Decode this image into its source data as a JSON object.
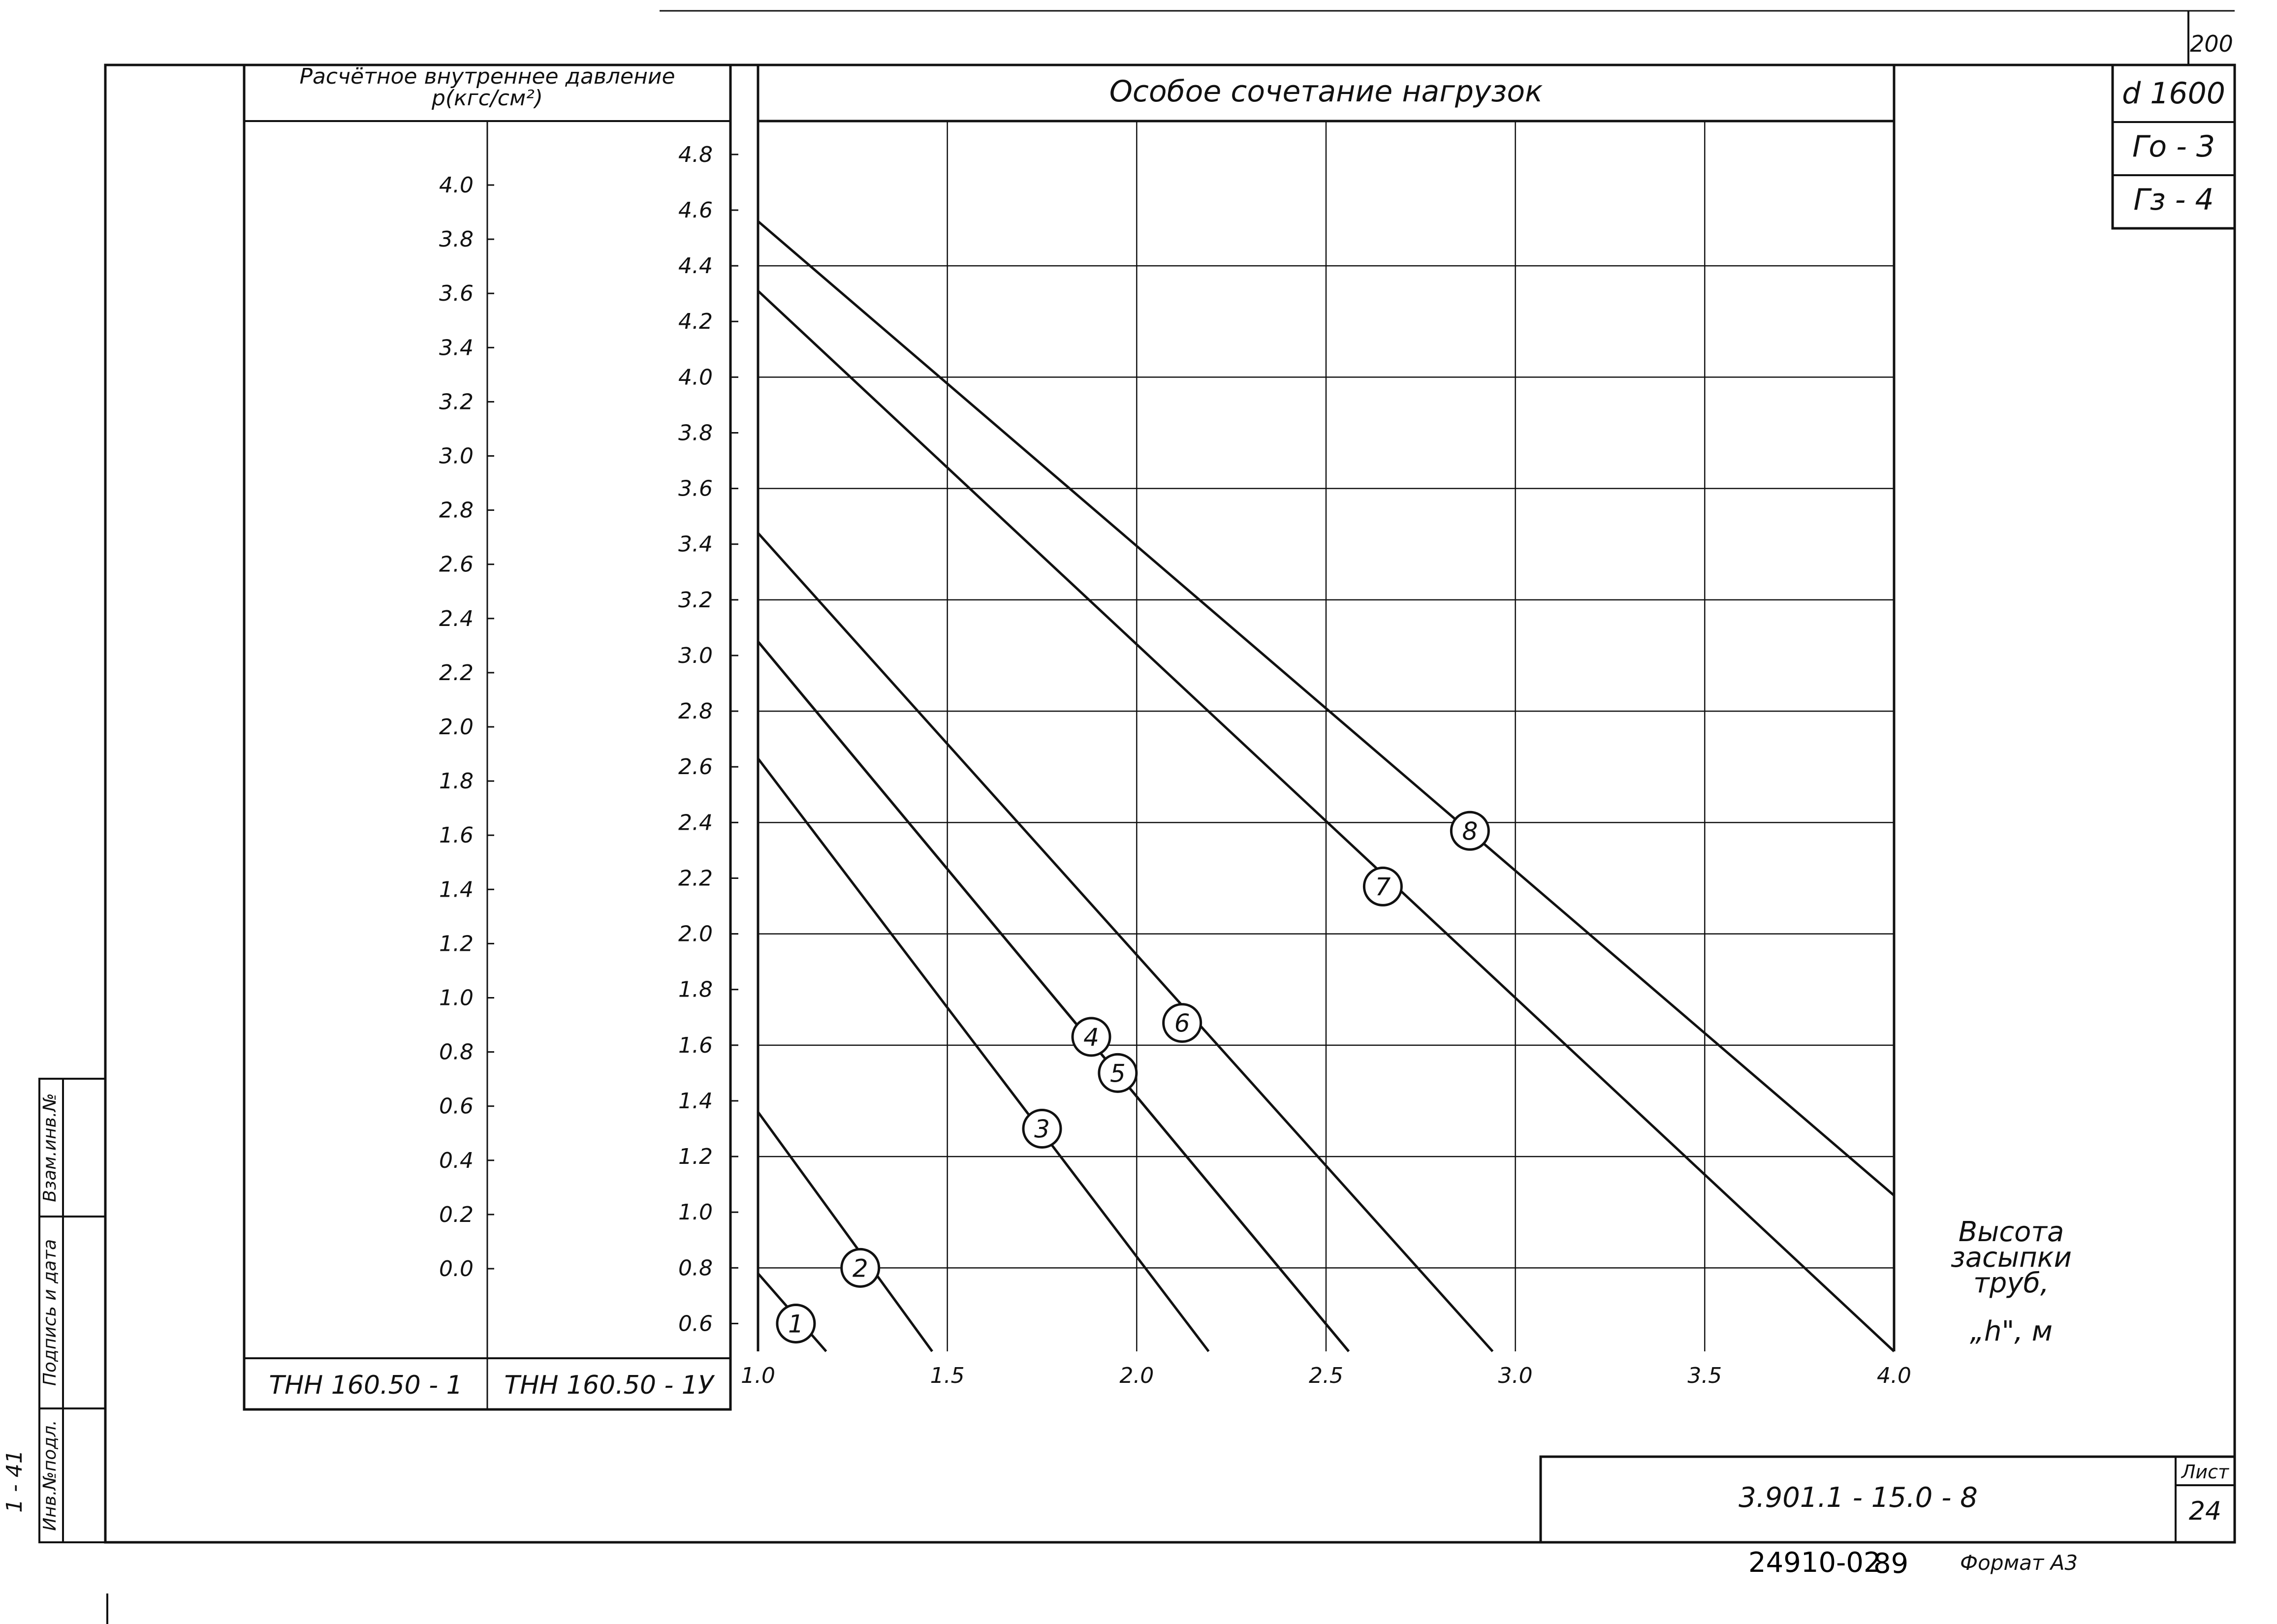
{
  "sheet": {
    "page_number": "200",
    "stamp": {
      "line1": "d 1600",
      "line2": "Го - 3",
      "line3": "Гз - 4"
    },
    "left_column": {
      "label1": "Взам.инв.№",
      "label2": "Подпись и дата",
      "label3": "Инв.№подл."
    },
    "left_margin_note": "1 - 41",
    "title_block": {
      "code": "3.901.1 - 15.0 - 8",
      "sheet_label": "Лист",
      "sheet_number": "24"
    },
    "footer": {
      "archive": "24910-02",
      "num": "89",
      "format_label": "Формат А3"
    }
  },
  "pressure_table": {
    "header_line1": "Расчётное внутреннее давление",
    "header_line2": "p(кгс/см²)",
    "col1_label": "ТНН 160.50 - 1",
    "col2_label": "ТНН 160.50 - 1У",
    "col1_ticks": [
      "4.0",
      "3.8",
      "3.6",
      "3.4",
      "3.2",
      "3.0",
      "2.8",
      "2.6",
      "2.4",
      "2.2",
      "2.0",
      "1.8",
      "1.6",
      "1.4",
      "1.2",
      "1.0",
      "0.8",
      "0.6",
      "0.4",
      "0.2",
      "0.0"
    ],
    "col2_ticks": [
      "4.8",
      "4.6",
      "4.4",
      "4.2",
      "4.0",
      "3.8",
      "3.6",
      "3.4",
      "3.2",
      "3.0",
      "2.8",
      "2.6",
      "2.4",
      "2.2",
      "2.0",
      "1.8",
      "1.6",
      "1.4",
      "1.2",
      "1.0",
      "0.8",
      "0.6"
    ]
  },
  "chart_data": {
    "type": "line",
    "title": "Особое сочетание нагрузок",
    "xlabel": "Высота засыпки труб, „h\", м",
    "xlabel_lines": [
      "Высота",
      "засыпки",
      "труб,",
      "„h\", м"
    ],
    "xlim": [
      1.0,
      4.0
    ],
    "ylim": [
      0.5,
      4.92
    ],
    "x_ticks": [
      "1.0",
      "1.5",
      "2.0",
      "2.5",
      "3.0",
      "3.5",
      "4.0"
    ],
    "grid": true,
    "series": [
      {
        "name": "1",
        "points": [
          [
            1.0,
            0.78
          ],
          [
            1.18,
            0.5
          ]
        ],
        "label_at": [
          1.1,
          0.6
        ]
      },
      {
        "name": "2",
        "points": [
          [
            1.0,
            1.36
          ],
          [
            1.46,
            0.5
          ]
        ],
        "label_at": [
          1.27,
          0.8
        ]
      },
      {
        "name": "3",
        "points": [
          [
            1.0,
            2.63
          ],
          [
            2.19,
            0.5
          ]
        ],
        "label_at": [
          1.75,
          1.3
        ]
      },
      {
        "name": "4",
        "points": [
          [
            1.0,
            3.05
          ],
          [
            2.56,
            0.5
          ]
        ],
        "label_at": [
          1.88,
          1.63
        ]
      },
      {
        "name": "5",
        "points": [
          [
            1.0,
            3.05
          ],
          [
            2.56,
            0.5
          ]
        ],
        "label_at": [
          1.95,
          1.5
        ]
      },
      {
        "name": "6",
        "points": [
          [
            1.0,
            3.44
          ],
          [
            2.94,
            0.5
          ]
        ],
        "label_at": [
          2.12,
          1.68
        ]
      },
      {
        "name": "7",
        "points": [
          [
            1.0,
            4.31
          ],
          [
            4.0,
            0.5
          ]
        ],
        "label_at": [
          2.65,
          2.17
        ]
      },
      {
        "name": "8",
        "points": [
          [
            1.0,
            4.56
          ],
          [
            4.0,
            1.06
          ]
        ],
        "label_at": [
          2.88,
          2.37
        ]
      }
    ]
  }
}
